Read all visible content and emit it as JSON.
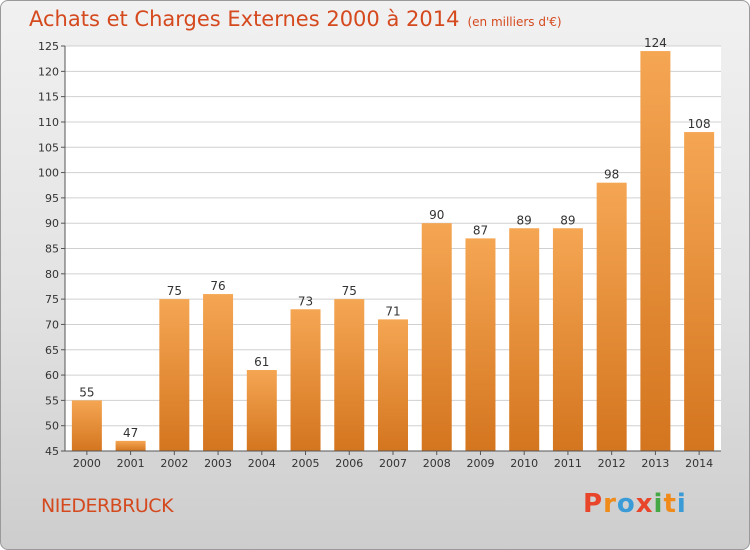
{
  "chart_data": {
    "type": "bar",
    "title": "Achats et Charges Externes 2000 à 2014",
    "unit_note": "(en milliers d'€)",
    "categories": [
      "2000",
      "2001",
      "2002",
      "2003",
      "2004",
      "2005",
      "2006",
      "2007",
      "2008",
      "2009",
      "2010",
      "2011",
      "2012",
      "2013",
      "2014"
    ],
    "values": [
      55,
      47,
      75,
      76,
      61,
      73,
      75,
      71,
      90,
      87,
      89,
      89,
      98,
      124,
      108
    ],
    "ylim": [
      45,
      125
    ],
    "yticks": [
      45,
      50,
      55,
      60,
      65,
      70,
      75,
      80,
      85,
      90,
      95,
      100,
      105,
      110,
      115,
      120,
      125
    ],
    "grid": true,
    "bar_color_top": "#f5a653",
    "bar_color_bottom": "#d4751f",
    "data_labels": true
  },
  "footer": {
    "town": "NIEDERBRUCK",
    "logo_letters": [
      "P",
      "r",
      "o",
      "x",
      "i",
      "t",
      "i"
    ],
    "logo_colors": [
      "#e8452b",
      "#f08a18",
      "#3a9bd7",
      "#e8452b",
      "#46a844",
      "#f08a18",
      "#3a9bd7"
    ]
  }
}
